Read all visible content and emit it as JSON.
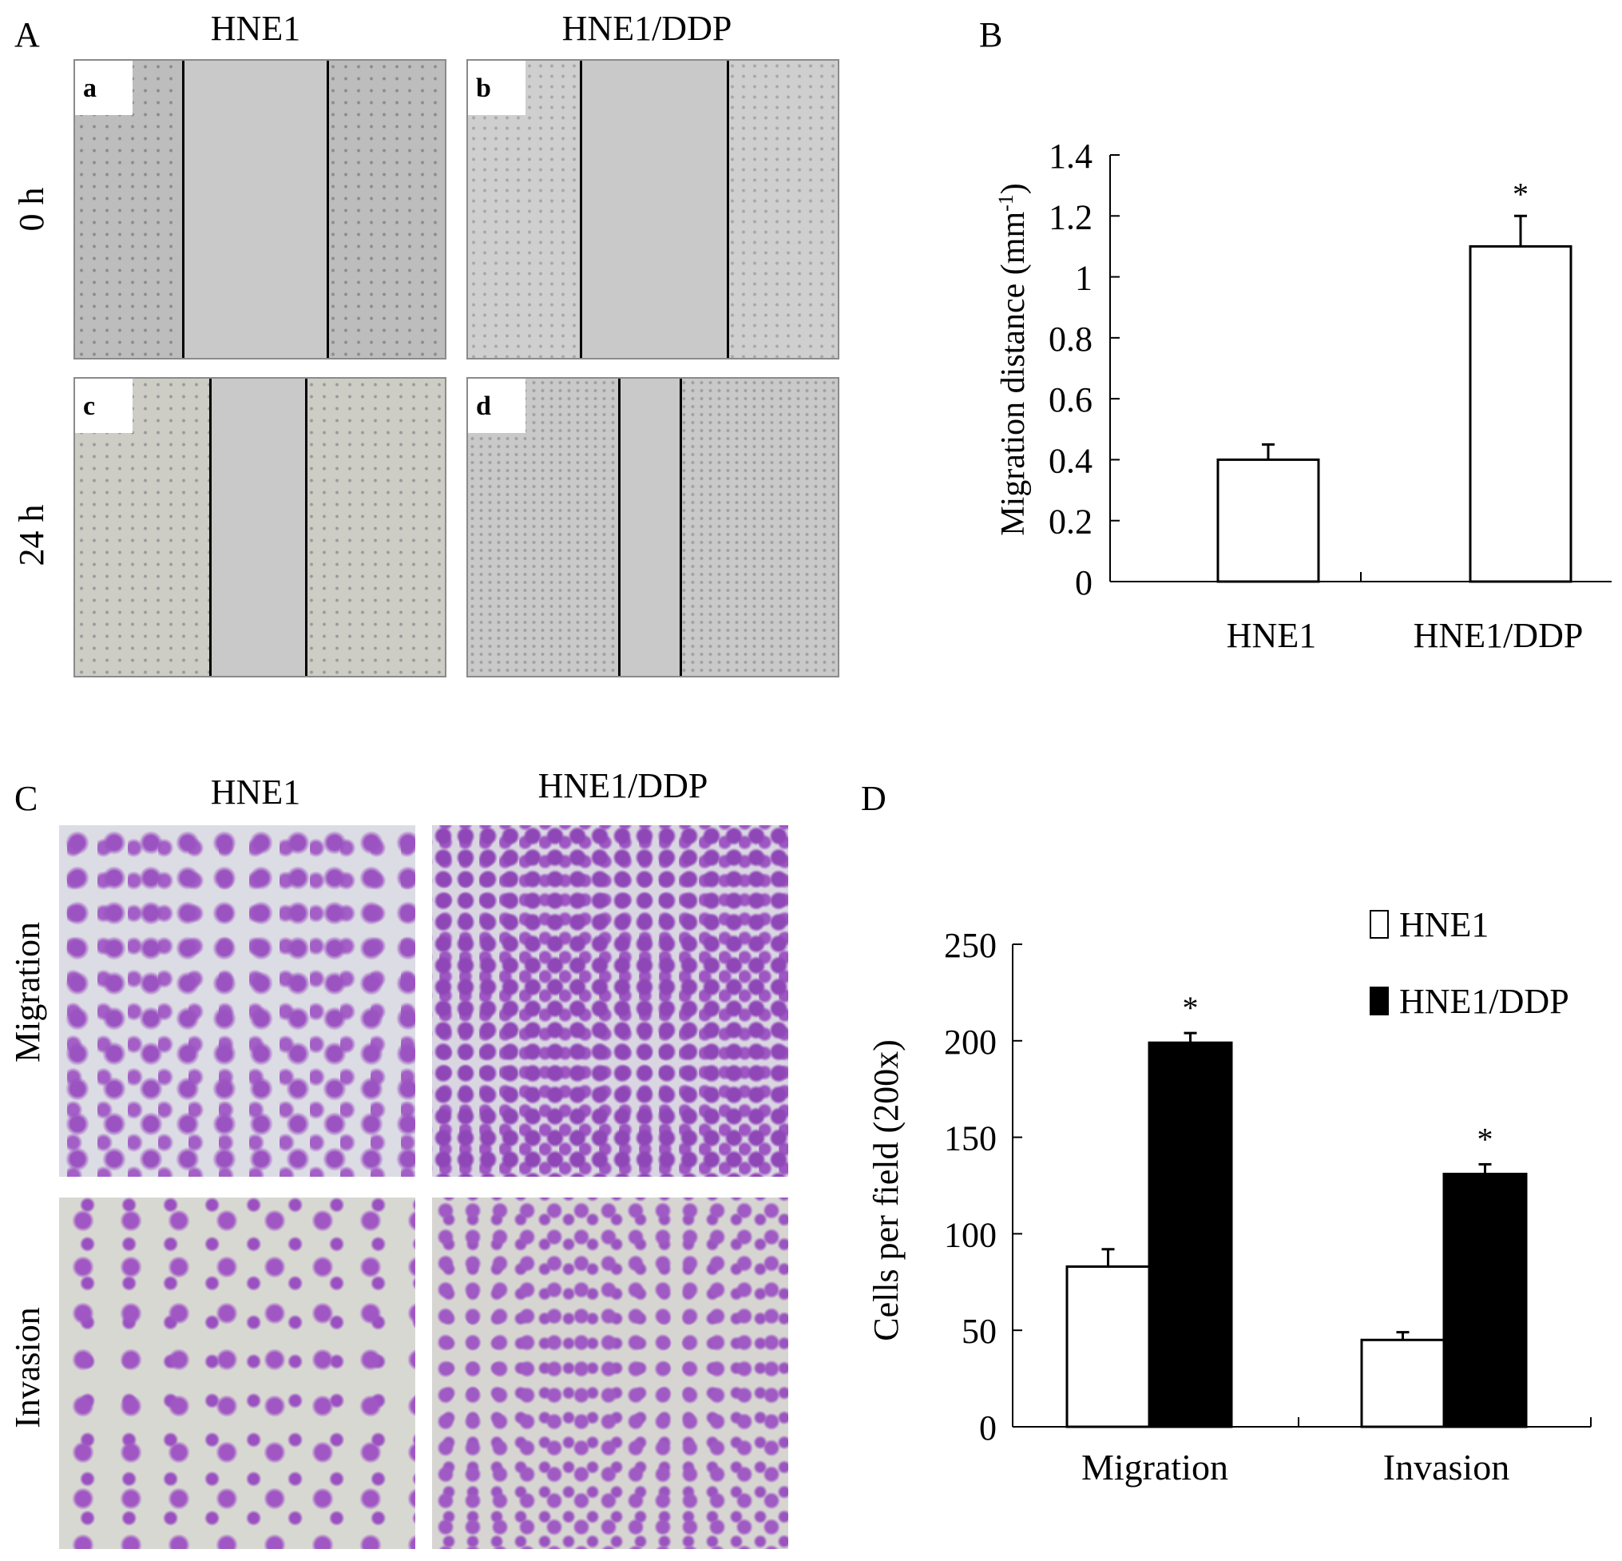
{
  "panel_A": {
    "letter": "A",
    "col_titles": [
      "HNE1",
      "HNE1/DDP"
    ],
    "row_titles": [
      "0 h",
      "24 h"
    ],
    "sub_labels": [
      "a",
      "b",
      "c",
      "d"
    ]
  },
  "panel_C": {
    "letter": "C",
    "col_titles": [
      "HNE1",
      "HNE1/DDP"
    ],
    "row_titles": [
      "Migration",
      "Invasion"
    ]
  },
  "chart_data": [
    {
      "panel": "B",
      "type": "bar",
      "categories": [
        "HNE1",
        "HNE1/DDP"
      ],
      "values": [
        0.4,
        1.1
      ],
      "errors": [
        0.05,
        0.1
      ],
      "significance": [
        "",
        "*"
      ],
      "ylabel": "Migration distance (mm",
      "ylabel_sup": "-1",
      "ylabel_close": ")",
      "ylim": [
        0,
        1.4
      ],
      "yticks": [
        "0",
        "0.2",
        "0.4",
        "0.6",
        "0.8",
        "1",
        "1.2",
        "1.4"
      ],
      "bar_color": "#ffffff"
    },
    {
      "panel": "D",
      "type": "bar",
      "categories": [
        "Migration",
        "Invasion"
      ],
      "series": [
        {
          "name": "HNE1",
          "values": [
            83,
            45
          ],
          "errors": [
            9,
            4
          ],
          "color": "#ffffff",
          "significance": [
            "",
            ""
          ]
        },
        {
          "name": "HNE1/DDP",
          "values": [
            199,
            131
          ],
          "errors": [
            5,
            5
          ],
          "color": "#000000",
          "significance": [
            "*",
            "*"
          ]
        }
      ],
      "ylabel": "Cells per field (200x)",
      "ylim": [
        0,
        250
      ],
      "yticks": [
        "0",
        "50",
        "100",
        "150",
        "200",
        "250"
      ],
      "legend_position": "top-right"
    }
  ]
}
